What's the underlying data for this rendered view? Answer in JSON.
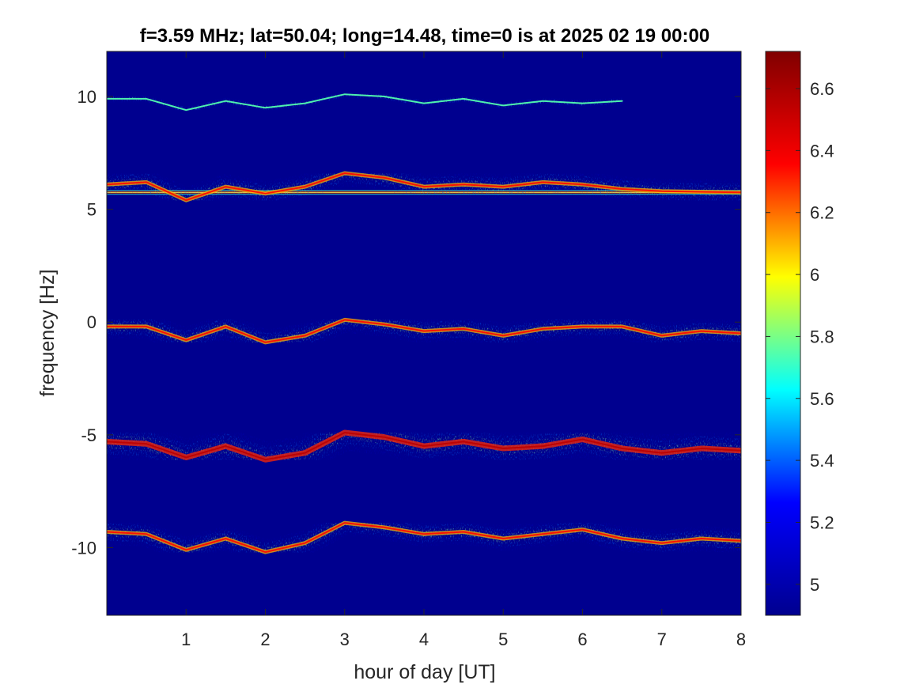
{
  "chart_data": {
    "type": "heatmap",
    "title": "f=3.59 MHz;  lat=50.04; long=14.48, time=0 is at 2025 02 19 00:00",
    "xlabel": "hour of day [UT]",
    "ylabel": "frequency [Hz]",
    "xlim": [
      0,
      8
    ],
    "ylim": [
      -13,
      12
    ],
    "xticks": [
      1,
      2,
      3,
      4,
      5,
      6,
      7,
      8
    ],
    "yticks": [
      -10,
      -5,
      0,
      5,
      10
    ],
    "colormap": "jet",
    "background_color": "#00008f",
    "colorbar": {
      "clim": [
        4.9,
        6.72
      ],
      "ticks": [
        5,
        5.2,
        5.4,
        5.6,
        5.8,
        6,
        6.2,
        6.4,
        6.6
      ],
      "stops": [
        "#00008f",
        "#0000ff",
        "#00ffff",
        "#ffff00",
        "#ff0000",
        "#800000"
      ]
    },
    "grid": false,
    "traces": [
      {
        "kind": "carrier line",
        "x": [
          0,
          8
        ],
        "y": [
          5.75,
          5.75
        ],
        "intensity": 6.7,
        "spread_hz": 0.05
      },
      {
        "kind": "echo band",
        "x": [
          0,
          0.5,
          1,
          1.5,
          2,
          2.5,
          3,
          3.5,
          4,
          4.5,
          5,
          5.5,
          6,
          6.5
        ],
        "y": [
          9.9,
          9.9,
          9.4,
          9.8,
          9.5,
          9.7,
          10.1,
          10.0,
          9.7,
          9.9,
          9.6,
          9.8,
          9.7,
          9.8
        ],
        "intensity": 5.6,
        "spread_hz": 0.2
      },
      {
        "kind": "echo band",
        "x": [
          0,
          0.5,
          1,
          1.5,
          2,
          2.5,
          3,
          3.5,
          4,
          4.5,
          5,
          5.5,
          6,
          6.5,
          7,
          8
        ],
        "y": [
          6.1,
          6.2,
          5.4,
          6.0,
          5.7,
          6.0,
          6.6,
          6.4,
          6.0,
          6.1,
          6.0,
          6.2,
          6.1,
          5.9,
          5.8,
          5.75
        ],
        "intensity": 6.2,
        "spread_hz": 0.7
      },
      {
        "kind": "echo band",
        "x": [
          0,
          0.5,
          1,
          1.5,
          2,
          2.5,
          3,
          3.5,
          4,
          4.5,
          5,
          5.5,
          6,
          6.5,
          7,
          7.5,
          8
        ],
        "y": [
          -0.2,
          -0.2,
          -0.8,
          -0.2,
          -0.9,
          -0.6,
          0.1,
          -0.1,
          -0.4,
          -0.3,
          -0.6,
          -0.3,
          -0.2,
          -0.2,
          -0.6,
          -0.4,
          -0.5
        ],
        "intensity": 6.2,
        "spread_hz": 0.7
      },
      {
        "kind": "echo band",
        "x": [
          0,
          0.5,
          1,
          1.5,
          2,
          2.5,
          3,
          3.5,
          4,
          4.5,
          5,
          5.5,
          6,
          6.5,
          7,
          7.5,
          8
        ],
        "y": [
          -5.3,
          -5.4,
          -6.0,
          -5.5,
          -6.1,
          -5.8,
          -4.9,
          -5.1,
          -5.5,
          -5.3,
          -5.6,
          -5.5,
          -5.2,
          -5.6,
          -5.8,
          -5.6,
          -5.7
        ],
        "intensity": 6.4,
        "spread_hz": 1.0
      },
      {
        "kind": "echo band",
        "x": [
          0,
          0.5,
          1,
          1.5,
          2,
          2.5,
          3,
          3.5,
          4,
          4.5,
          5,
          5.5,
          6,
          6.5,
          7,
          7.5,
          8
        ],
        "y": [
          -9.3,
          -9.4,
          -10.1,
          -9.6,
          -10.2,
          -9.8,
          -8.9,
          -9.1,
          -9.4,
          -9.3,
          -9.6,
          -9.4,
          -9.2,
          -9.6,
          -9.8,
          -9.6,
          -9.7
        ],
        "intensity": 6.2,
        "spread_hz": 0.7
      }
    ]
  }
}
